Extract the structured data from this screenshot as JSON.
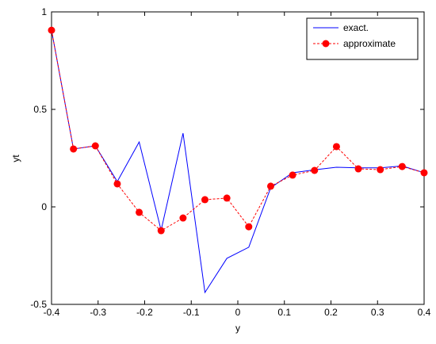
{
  "chart_data": {
    "type": "line",
    "xlabel": "y",
    "ylabel": "yt",
    "x": [
      -0.4,
      -0.3529,
      -0.3059,
      -0.2588,
      -0.2118,
      -0.1647,
      -0.1176,
      -0.0706,
      -0.0235,
      0.0235,
      0.0706,
      0.1176,
      0.1647,
      0.2118,
      0.2588,
      0.3059,
      0.3529,
      0.4
    ],
    "series": [
      {
        "name": "exact.",
        "color": "#0000ff",
        "dashed": false,
        "markers": false,
        "values": [
          0.906,
          0.297,
          0.313,
          0.13,
          0.333,
          -0.12,
          0.378,
          -0.439,
          -0.264,
          -0.207,
          0.098,
          0.175,
          0.19,
          0.203,
          0.2,
          0.2,
          0.21,
          0.175
        ]
      },
      {
        "name": "approximate",
        "color": "#ff0000",
        "dashed": true,
        "markers": true,
        "values": [
          0.906,
          0.297,
          0.313,
          0.118,
          -0.028,
          -0.122,
          -0.057,
          0.037,
          0.045,
          -0.102,
          0.106,
          0.163,
          0.187,
          0.309,
          0.195,
          0.191,
          0.207,
          0.175
        ]
      }
    ],
    "xlim": [
      -0.4,
      0.4
    ],
    "xticks": [
      -0.4,
      -0.3,
      -0.2,
      -0.1,
      0,
      0.1,
      0.2,
      0.3,
      0.4
    ],
    "ylim": [
      -0.5,
      1
    ],
    "yticks": [
      -0.5,
      0,
      0.5,
      1
    ],
    "grid": false,
    "legend": "upper-right"
  }
}
